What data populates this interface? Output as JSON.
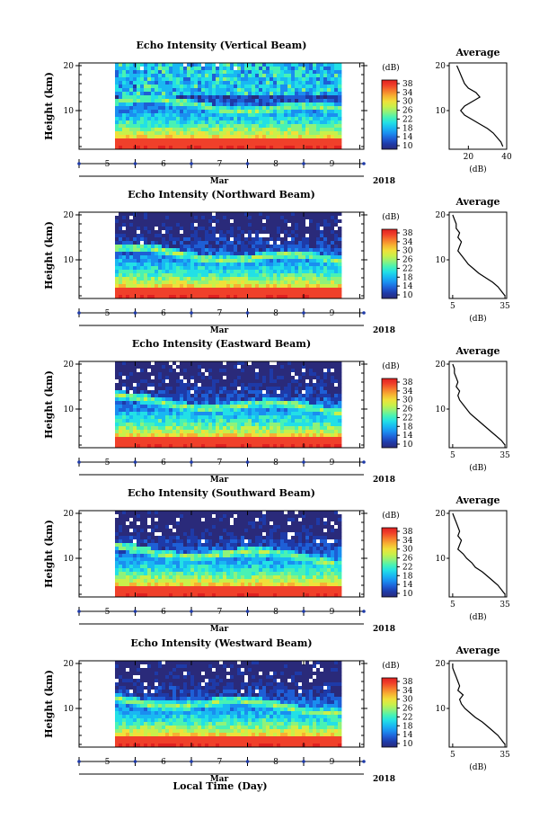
{
  "figure": {
    "xlabel": "Local Time (Day)",
    "month_label": "Mar",
    "year_label": "2018",
    "avg_title": "Average",
    "avg_xlabel": "(dB)",
    "cbar_label": "(dB)",
    "ylabel": "Height (km)"
  },
  "colormap": [
    "#2a2a7a",
    "#1e3aa8",
    "#1e5fd6",
    "#1a8ef0",
    "#19b8f2",
    "#22e0e6",
    "#48f2b4",
    "#8ff27a",
    "#c9f04a",
    "#f0e03a",
    "#f7b032",
    "#f57a2c",
    "#f0402a",
    "#e02020"
  ],
  "chart_data": [
    {
      "type": "heatmap",
      "title": "Echo Intensity (Vertical Beam)",
      "ylabel": "Height (km)",
      "y_ticks": [
        "20",
        "10"
      ],
      "x_ticks": [
        "5",
        "6",
        "7",
        "8",
        "9"
      ],
      "colorbar": {
        "label": "(dB)",
        "ticks": [
          "38",
          "34",
          "30",
          "26",
          "22",
          "18",
          "14",
          "10"
        ],
        "range": [
          10,
          38
        ]
      },
      "average_profile": {
        "xlabel": "(dB)",
        "x_ticks": [
          "20",
          "40"
        ],
        "xlim": [
          10,
          40
        ],
        "height_km": [
          20,
          19,
          18,
          17,
          16,
          15,
          14,
          13,
          12,
          11,
          10,
          9,
          8,
          7,
          6,
          5,
          4,
          3,
          2
        ],
        "db": [
          14,
          15,
          16,
          17,
          18,
          20,
          24,
          26,
          22,
          18,
          16,
          18,
          22,
          26,
          30,
          33,
          35,
          37,
          38
        ]
      }
    },
    {
      "type": "heatmap",
      "title": "Echo Intensity (Northward Beam)",
      "ylabel": "Height (km)",
      "y_ticks": [
        "20",
        "10"
      ],
      "x_ticks": [
        "5",
        "6",
        "7",
        "8",
        "9"
      ],
      "colorbar": {
        "label": "(dB)",
        "ticks": [
          "38",
          "34",
          "30",
          "26",
          "22",
          "18",
          "14",
          "10"
        ],
        "range": [
          10,
          38
        ]
      },
      "average_profile": {
        "xlabel": "(dB)",
        "x_ticks": [
          "5",
          "35"
        ],
        "xlim": [
          3,
          36
        ],
        "height_km": [
          20,
          19,
          18,
          17,
          16,
          15,
          14,
          13,
          12,
          11,
          10,
          9,
          8,
          7,
          6,
          5,
          4,
          3,
          2
        ],
        "db": [
          5,
          6,
          7,
          7,
          9,
          8,
          10,
          9,
          8,
          10,
          12,
          14,
          17,
          20,
          24,
          28,
          31,
          33,
          35
        ]
      }
    },
    {
      "type": "heatmap",
      "title": "Echo Intensity (Eastward Beam)",
      "ylabel": "Height (km)",
      "y_ticks": [
        "20",
        "10"
      ],
      "x_ticks": [
        "5",
        "6",
        "7",
        "8",
        "9"
      ],
      "colorbar": {
        "label": "(dB)",
        "ticks": [
          "38",
          "34",
          "30",
          "26",
          "22",
          "18",
          "14",
          "10"
        ],
        "range": [
          10,
          38
        ]
      },
      "average_profile": {
        "xlabel": "(dB)",
        "x_ticks": [
          "5",
          "35"
        ],
        "xlim": [
          3,
          36
        ],
        "height_km": [
          20,
          19,
          18,
          17,
          16,
          15,
          14,
          13,
          12,
          11,
          10,
          9,
          8,
          7,
          6,
          5,
          4,
          3,
          2
        ],
        "db": [
          5,
          6,
          6,
          7,
          8,
          7,
          9,
          8,
          9,
          11,
          13,
          15,
          18,
          21,
          24,
          27,
          30,
          33,
          35
        ]
      }
    },
    {
      "type": "heatmap",
      "title": "Echo Intensity (Southward Beam)",
      "ylabel": "Height (km)",
      "y_ticks": [
        "20",
        "10"
      ],
      "x_ticks": [
        "5",
        "6",
        "7",
        "8",
        "9"
      ],
      "colorbar": {
        "label": "(dB)",
        "ticks": [
          "38",
          "34",
          "30",
          "26",
          "22",
          "18",
          "14",
          "10"
        ],
        "range": [
          10,
          38
        ]
      },
      "average_profile": {
        "xlabel": "(dB)",
        "x_ticks": [
          "5",
          "35"
        ],
        "xlim": [
          3,
          36
        ],
        "height_km": [
          20,
          19,
          18,
          17,
          16,
          15,
          14,
          13,
          12,
          11,
          10,
          9,
          8,
          7,
          6,
          5,
          4,
          3,
          2
        ],
        "db": [
          5,
          6,
          7,
          8,
          9,
          8,
          10,
          9,
          8,
          11,
          13,
          16,
          18,
          22,
          25,
          28,
          31,
          33,
          35
        ]
      }
    },
    {
      "type": "heatmap",
      "title": "Echo Intensity (Westward Beam)",
      "ylabel": "Height (km)",
      "y_ticks": [
        "20",
        "10"
      ],
      "x_ticks": [
        "5",
        "6",
        "7",
        "8",
        "9"
      ],
      "colorbar": {
        "label": "(dB)",
        "ticks": [
          "38",
          "34",
          "30",
          "26",
          "22",
          "18",
          "14",
          "10"
        ],
        "range": [
          10,
          38
        ]
      },
      "average_profile": {
        "xlabel": "(dB)",
        "x_ticks": [
          "5",
          "35"
        ],
        "xlim": [
          3,
          36
        ],
        "height_km": [
          20,
          19,
          18,
          17,
          16,
          15,
          14,
          13,
          12,
          11,
          10,
          9,
          8,
          7,
          6,
          5,
          4,
          3,
          2
        ],
        "db": [
          5,
          5,
          6,
          7,
          8,
          9,
          8,
          11,
          9,
          10,
          12,
          15,
          18,
          22,
          25,
          28,
          31,
          33,
          35
        ]
      }
    }
  ]
}
